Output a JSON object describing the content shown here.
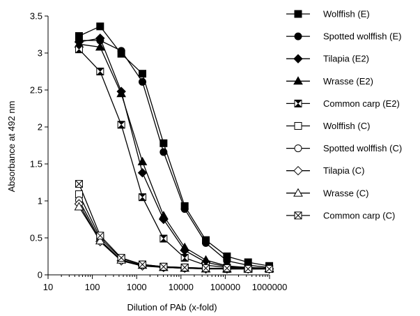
{
  "chart_data": {
    "type": "line",
    "title": "",
    "xlabel": "Dilution of PAb (x-fold)",
    "ylabel": "Absorbance at  492 nm",
    "x_scale": "log",
    "xlim": [
      10,
      1000000
    ],
    "ylim": [
      0,
      3.5
    ],
    "x_ticks": [
      10,
      100,
      1000,
      10000,
      100000,
      1000000
    ],
    "x_tick_labels": [
      "10",
      "100",
      "1000",
      "10000",
      "100000",
      "1000000"
    ],
    "y_ticks": [
      0,
      0.5,
      1,
      1.5,
      2,
      2.5,
      3,
      3.5
    ],
    "y_tick_labels": [
      "0",
      "0.5",
      "1",
      "1.5",
      "2",
      "2.5",
      "3",
      "3.5"
    ],
    "grid": false,
    "legend_position": "right",
    "line_color": "#000000",
    "x": [
      50,
      150,
      450,
      1350,
      4050,
      12150,
      36450,
      109350,
      328050,
      984150
    ],
    "series": [
      {
        "name": "Wolffish (E)",
        "marker": "square-filled",
        "values": [
          3.23,
          3.36,
          2.99,
          2.72,
          1.78,
          0.93,
          0.47,
          0.25,
          0.17,
          0.12
        ]
      },
      {
        "name": "Spotted wolffish (E)",
        "marker": "circle-filled",
        "values": [
          3.17,
          3.17,
          3.03,
          2.61,
          1.66,
          0.89,
          0.43,
          0.19,
          0.13,
          0.1
        ]
      },
      {
        "name": "Tilapia (E2)",
        "marker": "diamond-filled",
        "values": [
          3.15,
          3.2,
          2.48,
          1.38,
          0.75,
          0.33,
          0.17,
          0.11,
          0.09,
          0.08
        ]
      },
      {
        "name": "Wrasse (E2)",
        "marker": "triangle-filled",
        "values": [
          3.12,
          3.08,
          2.45,
          1.53,
          0.8,
          0.37,
          0.2,
          0.12,
          0.1,
          0.09
        ]
      },
      {
        "name": "Common carp (E2)",
        "marker": "hourglass",
        "values": [
          3.05,
          2.75,
          2.03,
          1.05,
          0.49,
          0.23,
          0.13,
          0.1,
          0.09,
          0.08
        ]
      },
      {
        "name": "Wolffish (C)",
        "marker": "square-open",
        "values": [
          1.09,
          0.5,
          0.22,
          0.14,
          0.11,
          0.1,
          0.09,
          0.08,
          0.08,
          0.08
        ]
      },
      {
        "name": "Spotted wolffish (C)",
        "marker": "circle-open",
        "values": [
          1.01,
          0.47,
          0.2,
          0.13,
          0.1,
          0.09,
          0.09,
          0.08,
          0.08,
          0.08
        ]
      },
      {
        "name": "Tilapia (C)",
        "marker": "diamond-open",
        "values": [
          0.96,
          0.45,
          0.19,
          0.12,
          0.1,
          0.09,
          0.08,
          0.08,
          0.08,
          0.08
        ]
      },
      {
        "name": "Wrasse (C)",
        "marker": "triangle-open",
        "values": [
          0.92,
          0.46,
          0.2,
          0.13,
          0.1,
          0.09,
          0.08,
          0.08,
          0.08,
          0.08
        ]
      },
      {
        "name": "Common carp (C)",
        "marker": "boxed-x",
        "values": [
          1.23,
          0.53,
          0.23,
          0.14,
          0.11,
          0.1,
          0.09,
          0.09,
          0.08,
          0.08
        ]
      }
    ]
  }
}
